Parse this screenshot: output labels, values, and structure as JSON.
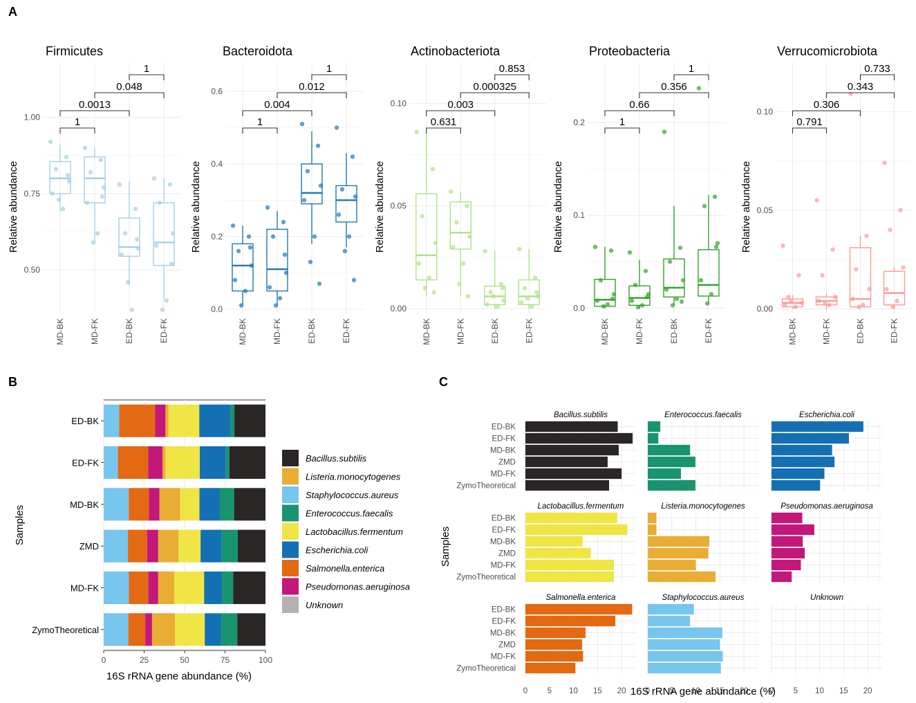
{
  "panel_labels": [
    "A",
    "B",
    "C"
  ],
  "chart_data": [
    {
      "type": "box",
      "panel": "A",
      "ylabel": "Relative abundance",
      "groups": [
        "MD-BK",
        "MD-FK",
        "ED-BK",
        "ED-FK"
      ],
      "phyla": [
        {
          "title": "Firmicutes",
          "color": "#a6cee3",
          "ylim": [
            0.36,
            1.18
          ],
          "yticks": [
            "0.50",
            "0.75",
            "1.00"
          ],
          "ytick_values": [
            0.5,
            0.75,
            1.0
          ],
          "boxes": [
            {
              "q1": 0.75,
              "med": 0.8,
              "q3": 0.855,
              "lo": 0.69,
              "hi": 0.91
            },
            {
              "q1": 0.72,
              "med": 0.8,
              "q3": 0.87,
              "lo": 0.59,
              "hi": 0.9
            },
            {
              "q1": 0.545,
              "med": 0.575,
              "q3": 0.67,
              "lo": 0.45,
              "hi": 0.79
            },
            {
              "q1": 0.515,
              "med": 0.59,
              "q3": 0.72,
              "lo": 0.4,
              "hi": 0.8
            }
          ],
          "points": [
            [
              0.92,
              0.87,
              0.83,
              0.79,
              0.75,
              0.7,
              0.73,
              0.81
            ],
            [
              0.9,
              0.86,
              0.82,
              0.77,
              0.72,
              0.62,
              0.59,
              0.74
            ],
            [
              0.78,
              0.7,
              0.62,
              0.57,
              0.55,
              0.37,
              0.46,
              0.6
            ],
            [
              0.8,
              0.78,
              0.72,
              0.62,
              0.58,
              0.4,
              0.37,
              0.52
            ]
          ],
          "comparisons": [
            {
              "g1": 0,
              "g2": 1,
              "label": "1"
            },
            {
              "g1": 0,
              "g2": 2,
              "label": "0.0013"
            },
            {
              "g1": 1,
              "g2": 3,
              "label": "0.048"
            },
            {
              "g1": 2,
              "g2": 3,
              "label": "1"
            }
          ]
        },
        {
          "title": "Bacteroidota",
          "color": "#1f78b4",
          "ylim": [
            -0.01,
            0.68
          ],
          "yticks": [
            "0.0",
            "0.2",
            "0.4",
            "0.6"
          ],
          "ytick_values": [
            0.0,
            0.2,
            0.4,
            0.6
          ],
          "boxes": [
            {
              "q1": 0.05,
              "med": 0.12,
              "q3": 0.18,
              "lo": 0.01,
              "hi": 0.23
            },
            {
              "q1": 0.05,
              "med": 0.11,
              "q3": 0.22,
              "lo": 0.01,
              "hi": 0.27
            },
            {
              "q1": 0.29,
              "med": 0.32,
              "q3": 0.4,
              "lo": 0.18,
              "hi": 0.49
            },
            {
              "q1": 0.24,
              "med": 0.3,
              "q3": 0.34,
              "lo": 0.17,
              "hi": 0.43
            }
          ],
          "points": [
            [
              0.23,
              0.2,
              0.16,
              0.12,
              0.08,
              0.05,
              0.01,
              0.17
            ],
            [
              0.28,
              0.24,
              0.2,
              0.1,
              0.06,
              0.03,
              0.01,
              0.15
            ],
            [
              0.51,
              0.45,
              0.38,
              0.34,
              0.3,
              0.2,
              0.13,
              0.07
            ],
            [
              0.5,
              0.42,
              0.33,
              0.31,
              0.26,
              0.2,
              0.16,
              0.08
            ]
          ],
          "comparisons": [
            {
              "g1": 0,
              "g2": 1,
              "label": "1"
            },
            {
              "g1": 0,
              "g2": 2,
              "label": "0.004"
            },
            {
              "g1": 1,
              "g2": 3,
              "label": "0.012"
            },
            {
              "g1": 2,
              "g2": 3,
              "label": "1"
            }
          ]
        },
        {
          "title": "Actinobacteriota",
          "color": "#b2df8a",
          "ylim": [
            -0.002,
            0.12
          ],
          "yticks": [
            "0.00",
            "0.05",
            "0.10"
          ],
          "ytick_values": [
            0.0,
            0.05,
            0.1
          ],
          "boxes": [
            {
              "q1": 0.014,
              "med": 0.026,
              "q3": 0.056,
              "lo": 0.006,
              "hi": 0.086
            },
            {
              "q1": 0.029,
              "med": 0.037,
              "q3": 0.052,
              "lo": 0.006,
              "hi": 0.057
            },
            {
              "q1": 0.002,
              "med": 0.006,
              "q3": 0.011,
              "lo": 0.0,
              "hi": 0.028
            },
            {
              "q1": 0.002,
              "med": 0.006,
              "q3": 0.014,
              "lo": 0.0,
              "hi": 0.029
            }
          ],
          "points": [
            [
              0.086,
              0.068,
              0.045,
              0.032,
              0.022,
              0.015,
              0.01,
              0.008
            ],
            [
              0.057,
              0.05,
              0.042,
              0.035,
              0.03,
              0.022,
              0.012,
              0.006
            ],
            [
              0.028,
              0.012,
              0.008,
              0.004,
              0.002,
              0.001,
              0.006,
              0.01
            ],
            [
              0.029,
              0.015,
              0.01,
              0.006,
              0.003,
              0.001,
              0.005,
              0.008
            ]
          ],
          "comparisons": [
            {
              "g1": 0,
              "g2": 1,
              "label": "0.631"
            },
            {
              "g1": 0,
              "g2": 2,
              "label": "0.003"
            },
            {
              "g1": 1,
              "g2": 3,
              "label": "0.000325"
            },
            {
              "g1": 2,
              "g2": 3,
              "label": "0.853"
            }
          ]
        },
        {
          "title": "Proteobacteria",
          "color": "#33a02c",
          "ylim": [
            -0.005,
            0.265
          ],
          "yticks": [
            "0.0",
            "0.1",
            "0.2"
          ],
          "ytick_values": [
            0.0,
            0.1,
            0.2
          ],
          "boxes": [
            {
              "q1": 0.002,
              "med": 0.009,
              "q3": 0.031,
              "lo": 0.0,
              "hi": 0.066
            },
            {
              "q1": 0.003,
              "med": 0.011,
              "q3": 0.024,
              "lo": 0.0,
              "hi": 0.052
            },
            {
              "q1": 0.012,
              "med": 0.022,
              "q3": 0.053,
              "lo": 0.003,
              "hi": 0.11
            },
            {
              "q1": 0.013,
              "med": 0.025,
              "q3": 0.063,
              "lo": 0.004,
              "hi": 0.122
            }
          ],
          "points": [
            [
              0.066,
              0.062,
              0.03,
              0.015,
              0.008,
              0.004,
              0.002,
              0.01
            ],
            [
              0.06,
              0.04,
              0.025,
              0.015,
              0.008,
              0.003,
              0.001,
              0.012
            ],
            [
              0.19,
              0.065,
              0.05,
              0.03,
              0.02,
              0.01,
              0.003,
              0.007
            ],
            [
              0.237,
              0.12,
              0.11,
              0.07,
              0.03,
              0.015,
              0.005,
              0.066
            ]
          ],
          "comparisons": [
            {
              "g1": 0,
              "g2": 1,
              "label": "1"
            },
            {
              "g1": 0,
              "g2": 2,
              "label": "0.66"
            },
            {
              "g1": 1,
              "g2": 3,
              "label": "0.356"
            },
            {
              "g1": 2,
              "g2": 3,
              "label": "1"
            }
          ]
        },
        {
          "title": "Verrucomicrobiota",
          "color": "#fb9a99",
          "ylim": [
            -0.002,
            0.125
          ],
          "yticks": [
            "0.00",
            "0.05",
            "0.10"
          ],
          "ytick_values": [
            0.0,
            0.05,
            0.1
          ],
          "boxes": [
            {
              "q1": 0.001,
              "med": 0.003,
              "q3": 0.005,
              "lo": 0.0,
              "hi": 0.007
            },
            {
              "q1": 0.002,
              "med": 0.004,
              "q3": 0.006,
              "lo": 0.0,
              "hi": 0.008
            },
            {
              "q1": 0.001,
              "med": 0.005,
              "q3": 0.031,
              "lo": 0.0,
              "hi": 0.037
            },
            {
              "q1": 0.002,
              "med": 0.008,
              "q3": 0.019,
              "lo": 0.0,
              "hi": 0.021
            }
          ],
          "points": [
            [
              0.032,
              0.017,
              0.006,
              0.003,
              0.002,
              0.001,
              0.004
            ],
            [
              0.055,
              0.03,
              0.017,
              0.006,
              0.004,
              0.002,
              0.003
            ],
            [
              0.109,
              0.037,
              0.02,
              0.01,
              0.005,
              0.002,
              0.001
            ],
            [
              0.074,
              0.05,
              0.04,
              0.021,
              0.01,
              0.004,
              0.001
            ]
          ],
          "comparisons": [
            {
              "g1": 0,
              "g2": 1,
              "label": "0.791"
            },
            {
              "g1": 0,
              "g2": 2,
              "label": "0.306"
            },
            {
              "g1": 1,
              "g2": 3,
              "label": "0.343"
            },
            {
              "g1": 2,
              "g2": 3,
              "label": "0.733"
            }
          ]
        }
      ]
    },
    {
      "type": "stacked-bar-horizontal",
      "panel": "B",
      "xlabel": "16S rRNA gene abundance (%)",
      "ylabel": "Samples",
      "xlim": [
        0,
        100
      ],
      "xticks": [
        "0",
        "25",
        "50",
        "75",
        "100"
      ],
      "samples": [
        "ED-BK",
        "ED-FK",
        "MD-BK",
        "ZMD",
        "MD-FK",
        "ZymoTheoretical"
      ],
      "stack_order": [
        "Staphylococcus.aureus",
        "Salmonella.enterica",
        "Pseudomonas.aeruginosa",
        "Listeria.monocytogenes",
        "Lactobacillus.fermentum",
        "Escherichia.coli",
        "Enterococcus.faecalis",
        "Unknown",
        "Bacillus.subtilis"
      ],
      "values": {
        "ED-BK": [
          9.6,
          22.2,
          6.4,
          1.8,
          19.1,
          19.1,
          2.6,
          0.0,
          19.2
        ],
        "ED-FK": [
          8.8,
          18.7,
          8.9,
          1.8,
          21.2,
          16.1,
          2.2,
          0.0,
          22.3
        ],
        "MD-BK": [
          15.5,
          12.5,
          6.5,
          12.8,
          11.9,
          12.6,
          8.8,
          0.0,
          19.4
        ],
        "ZMD": [
          15.0,
          11.8,
          6.9,
          12.6,
          13.6,
          13.1,
          9.9,
          0.0,
          17.1
        ],
        "MD-FK": [
          15.6,
          12.0,
          6.1,
          10.0,
          18.4,
          11.0,
          6.9,
          0.0,
          20.0
        ],
        "ZymoTheoretical": [
          15.2,
          10.4,
          4.2,
          14.1,
          18.4,
          10.1,
          9.9,
          0.0,
          17.4
        ]
      },
      "legend": [
        "Bacillus.subtilis",
        "Listeria.monocytogenes",
        "Staphylococcus.aureus",
        "Enterococcus.faecalis",
        "Lactobacillus.fermentum",
        "Escherichia.coli",
        "Salmonella.enterica",
        "Pseudomonas.aeruginosa",
        "Unknown"
      ]
    },
    {
      "type": "faceted-bar-horizontal",
      "panel": "C",
      "xlabel": "16S rRNA gene abundance (%)",
      "ylabel": "Samples",
      "xlim": [
        0,
        23
      ],
      "xticks": [
        "0",
        "5",
        "10",
        "15",
        "20"
      ],
      "samples": [
        "ED-BK",
        "ED-FK",
        "MD-BK",
        "ZMD",
        "MD-FK",
        "ZymoTheoretical"
      ],
      "facets": [
        "Bacillus.subtilis",
        "Enterococcus.faecalis",
        "Escherichia.coli",
        "Lactobacillus.fermentum",
        "Listeria.monocytogenes",
        "Pseudomonas.aeruginosa",
        "Salmonella.enterica",
        "Staphylococcus.aureus",
        "Unknown"
      ]
    }
  ],
  "species_colors": {
    "Bacillus.subtilis": "#2b2626",
    "Listeria.monocytogenes": "#e9ad35",
    "Staphylococcus.aureus": "#78c5ee",
    "Enterococcus.faecalis": "#1a9470",
    "Lactobacillus.fermentum": "#efe545",
    "Escherichia.coli": "#1470b3",
    "Salmonella.enterica": "#e36913",
    "Pseudomonas.aeruginosa": "#c3177a",
    "Unknown": "#b3b3b3"
  }
}
